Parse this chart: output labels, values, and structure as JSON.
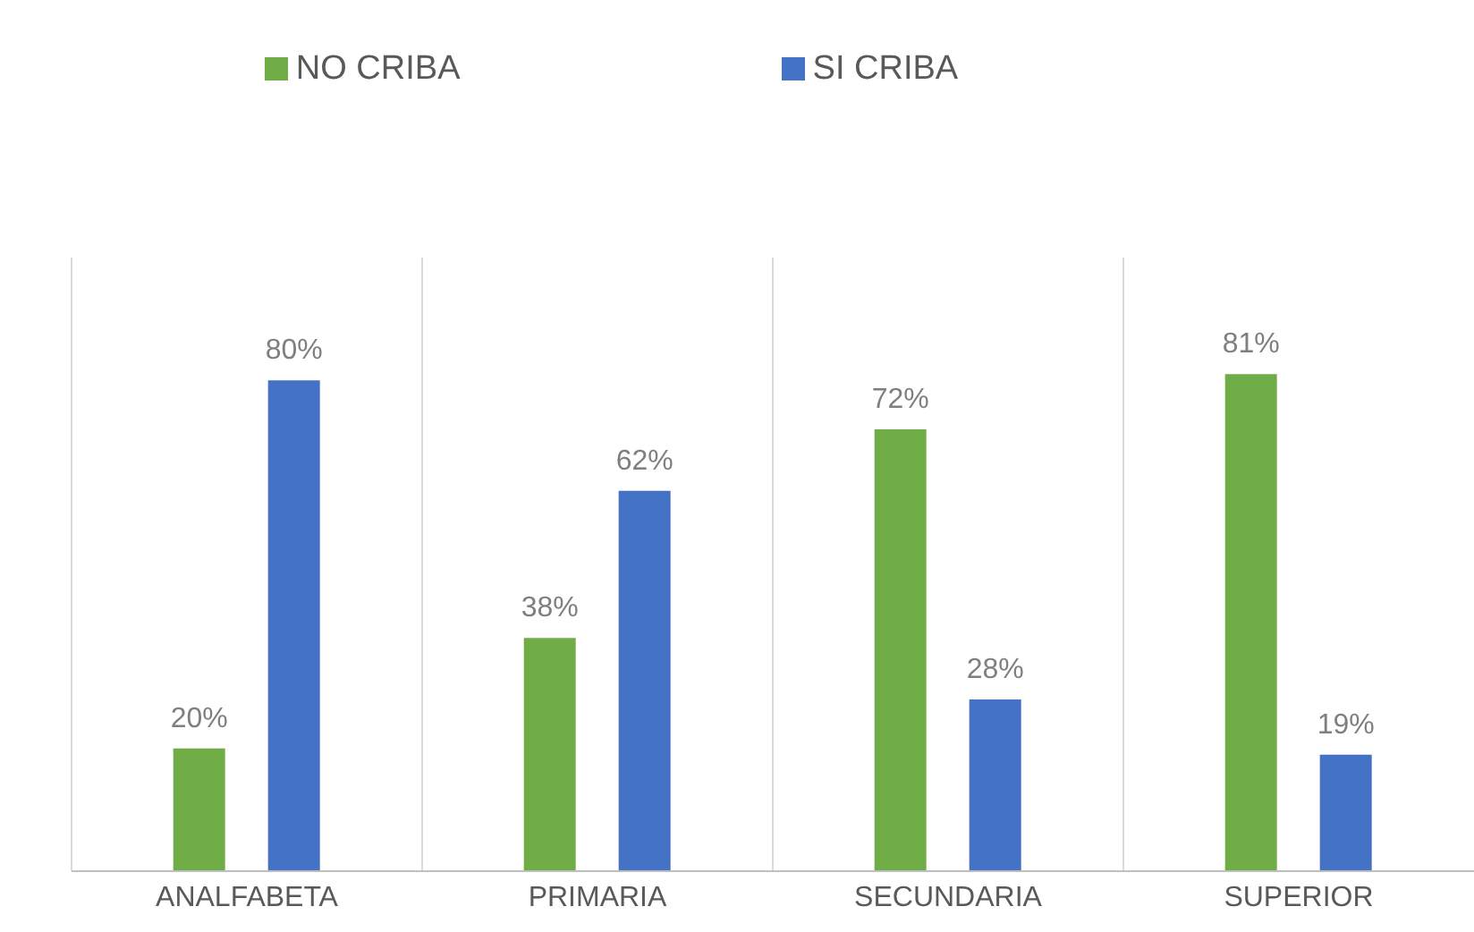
{
  "chart_data": {
    "type": "bar",
    "categories": [
      "ANALFABETA",
      "PRIMARIA",
      "SECUNDARIA",
      "SUPERIOR"
    ],
    "series": [
      {
        "name": "NO CRIBA",
        "color": "#70ad47",
        "values": [
          20,
          38,
          72,
          81
        ],
        "value_labels": [
          "20%",
          "38%",
          "72%",
          "81%"
        ]
      },
      {
        "name": "SI CRIBA",
        "color": "#4472c4",
        "values": [
          80,
          62,
          28,
          19
        ],
        "value_labels": [
          "80%",
          "62%",
          "28%",
          "19%"
        ]
      }
    ],
    "grid": "x",
    "legend": "top",
    "tick_labels": "x"
  }
}
